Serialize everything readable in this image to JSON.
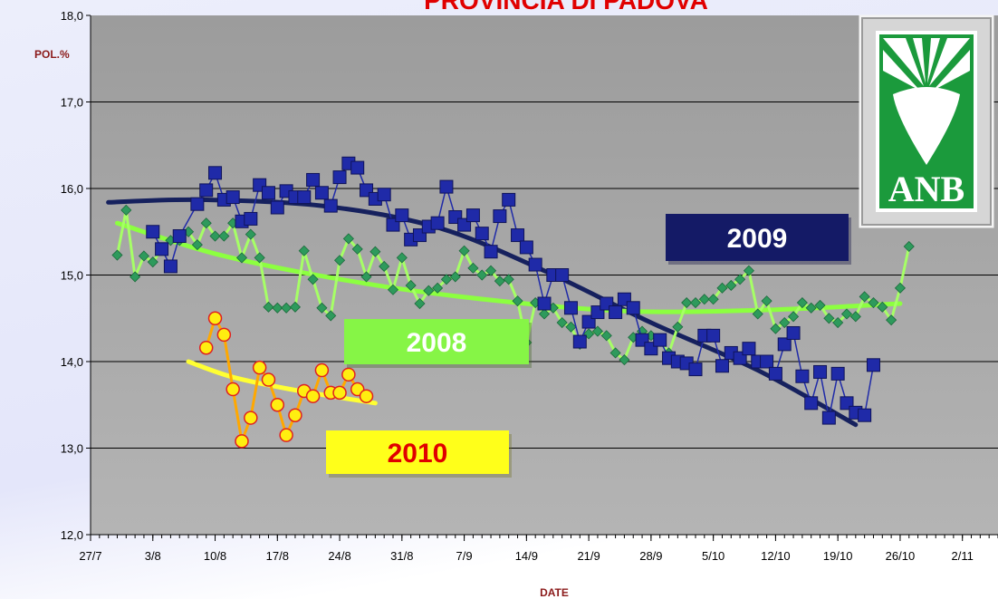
{
  "chart_data": {
    "type": "line",
    "title": "PROVINCIA DI PADOVA",
    "ylabel": "POL.%",
    "xlabel": "DATE",
    "logo": "ANB",
    "xlim": [
      "27/7",
      "6/11"
    ],
    "xticks": [
      "27/7",
      "3/8",
      "10/8",
      "17/8",
      "24/8",
      "31/8",
      "7/9",
      "14/9",
      "21/9",
      "28/9",
      "5/10",
      "12/10",
      "19/10",
      "26/10",
      "2/11"
    ],
    "ylim": [
      12,
      18
    ],
    "yticks": [
      {
        "value": 12,
        "label": "12,0"
      },
      {
        "value": 13,
        "label": "13,0"
      },
      {
        "value": 14,
        "label": "14,0"
      },
      {
        "value": 15,
        "label": "15,0"
      },
      {
        "value": 16,
        "label": "16,0"
      },
      {
        "value": 17,
        "label": "17,0"
      },
      {
        "value": 18,
        "label": "18,0"
      }
    ],
    "grid": true,
    "series": [
      {
        "name": "2009",
        "color": "#1f2aa8",
        "marker": "square",
        "x": [
          "3/8",
          "4/8",
          "5/8",
          "6/8",
          "8/8",
          "9/8",
          "10/8",
          "11/8",
          "12/8",
          "13/8",
          "14/8",
          "15/8",
          "16/8",
          "17/8",
          "18/8",
          "19/8",
          "20/8",
          "21/8",
          "22/8",
          "23/8",
          "24/8",
          "25/8",
          "26/8",
          "27/8",
          "28/8",
          "29/8",
          "30/8",
          "31/8",
          "1/9",
          "2/9",
          "3/9",
          "4/9",
          "5/9",
          "6/9",
          "7/9",
          "8/9",
          "9/9",
          "10/9",
          "11/9",
          "12/9",
          "13/9",
          "14/9",
          "15/9",
          "16/9",
          "17/9",
          "18/9",
          "19/9",
          "20/9",
          "21/9",
          "22/9",
          "23/9",
          "24/9",
          "25/9",
          "26/9",
          "27/9",
          "28/9",
          "29/9",
          "30/9",
          "1/10",
          "2/10",
          "3/10",
          "4/10",
          "5/10",
          "6/10",
          "7/10",
          "8/10",
          "9/10",
          "10/10",
          "11/10",
          "12/10",
          "13/10",
          "14/10",
          "15/10",
          "16/10",
          "17/10",
          "18/10",
          "19/10",
          "20/10",
          "21/10",
          "22/10",
          "23/10"
        ],
        "values": [
          15.5,
          15.3,
          15.1,
          15.45,
          15.82,
          15.98,
          16.18,
          15.87,
          15.9,
          15.62,
          15.65,
          16.04,
          15.95,
          15.78,
          15.97,
          15.9,
          15.9,
          16.1,
          15.95,
          15.8,
          16.13,
          16.29,
          16.24,
          15.98,
          15.88,
          15.93,
          15.58,
          15.69,
          15.41,
          15.46,
          15.56,
          15.6,
          16.02,
          15.67,
          15.58,
          15.69,
          15.48,
          15.27,
          15.68,
          15.87,
          15.46,
          15.32,
          15.12,
          14.67,
          15.0,
          15.0,
          14.62,
          14.23,
          14.46,
          14.57,
          14.67,
          14.57,
          14.72,
          14.62,
          14.25,
          14.15,
          14.25,
          14.04,
          14.0,
          13.98,
          13.91,
          14.3,
          14.3,
          13.95,
          14.1,
          14.04,
          14.15,
          14.0,
          14.0,
          13.86,
          14.2,
          14.33,
          13.83,
          13.52,
          13.88,
          13.35,
          13.86,
          13.52,
          13.41,
          13.38,
          13.96
        ],
        "trend": {
          "color": "#16215e",
          "x": [
            "29/7",
            "8/8",
            "22/8",
            "4/9",
            "16/9",
            "28/9",
            "10/10",
            "21/10"
          ],
          "values": [
            15.84,
            15.87,
            15.8,
            15.55,
            15.05,
            14.45,
            13.9,
            13.27
          ]
        }
      },
      {
        "name": "2008",
        "color": "#2e9a5c",
        "marker": "diamond",
        "x": [
          "30/7",
          "31/7",
          "1/8",
          "2/8",
          "3/8",
          "4/8",
          "5/8",
          "6/8",
          "7/8",
          "8/8",
          "9/8",
          "10/8",
          "11/8",
          "12/8",
          "13/8",
          "14/8",
          "15/8",
          "16/8",
          "17/8",
          "18/8",
          "19/8",
          "20/8",
          "21/8",
          "22/8",
          "23/8",
          "24/8",
          "25/8",
          "26/8",
          "27/8",
          "28/8",
          "29/8",
          "30/8",
          "31/8",
          "1/9",
          "2/9",
          "3/9",
          "4/9",
          "5/9",
          "6/9",
          "7/9",
          "8/9",
          "9/9",
          "10/9",
          "11/9",
          "12/9",
          "13/9",
          "14/9",
          "15/9",
          "16/9",
          "17/9",
          "18/9",
          "19/9",
          "20/9",
          "21/9",
          "22/9",
          "23/9",
          "24/9",
          "25/9",
          "26/9",
          "27/9",
          "28/9",
          "29/9",
          "30/9",
          "1/10",
          "2/10",
          "3/10",
          "4/10",
          "5/10",
          "6/10",
          "7/10",
          "8/10",
          "9/10",
          "10/10",
          "11/10",
          "12/10",
          "13/10",
          "14/10",
          "15/10",
          "16/10",
          "17/10",
          "18/10",
          "19/10",
          "20/10",
          "21/10",
          "22/10",
          "23/10",
          "24/10",
          "25/10",
          "26/10",
          "27/10"
        ],
        "values": [
          15.23,
          15.75,
          14.98,
          15.22,
          15.15,
          15.3,
          15.4,
          15.4,
          15.5,
          15.35,
          15.6,
          15.45,
          15.45,
          15.6,
          15.2,
          15.47,
          15.2,
          14.63,
          14.62,
          14.62,
          14.63,
          15.28,
          14.95,
          14.62,
          14.53,
          15.17,
          15.42,
          15.3,
          14.98,
          15.27,
          15.1,
          14.83,
          15.2,
          14.88,
          14.67,
          14.82,
          14.85,
          14.95,
          14.98,
          15.28,
          15.08,
          15.0,
          15.05,
          14.93,
          14.95,
          14.7,
          14.22,
          14.68,
          14.55,
          14.62,
          14.45,
          14.4,
          14.2,
          14.32,
          14.35,
          14.3,
          14.1,
          14.02,
          14.28,
          14.35,
          14.3,
          14.25,
          14.1,
          14.4,
          14.68,
          14.68,
          14.72,
          14.72,
          14.85,
          14.88,
          14.95,
          15.05,
          14.55,
          14.7,
          14.38,
          14.45,
          14.52,
          14.68,
          14.62,
          14.65,
          14.5,
          14.45,
          14.55,
          14.52,
          14.75,
          14.68,
          14.63,
          14.48,
          14.85,
          15.33
        ],
        "trend": {
          "color": "#8cff40",
          "x": [
            "30/7",
            "11/8",
            "27/8",
            "11/9",
            "26/9",
            "12/10",
            "26/10"
          ],
          "values": [
            15.6,
            15.22,
            14.9,
            14.7,
            14.58,
            14.6,
            14.67
          ]
        }
      },
      {
        "name": "2010",
        "color": "#ffa800",
        "marker": "circle",
        "x": [
          "9/8",
          "10/8",
          "11/8",
          "12/8",
          "13/8",
          "14/8",
          "15/8",
          "16/8",
          "17/8",
          "18/8",
          "19/8",
          "20/8",
          "21/8",
          "22/8",
          "23/8",
          "24/8",
          "25/8",
          "26/8",
          "27/8"
        ],
        "values": [
          14.16,
          14.5,
          14.31,
          13.68,
          13.08,
          13.35,
          13.93,
          13.79,
          13.5,
          13.15,
          13.38,
          13.66,
          13.6,
          13.9,
          13.64,
          13.64,
          13.85,
          13.68,
          13.6
        ],
        "trend": {
          "color": "#ffff33",
          "x": [
            "7/8",
            "12/8",
            "19/8",
            "28/8"
          ],
          "values": [
            14.0,
            13.82,
            13.67,
            13.52
          ]
        }
      }
    ]
  }
}
